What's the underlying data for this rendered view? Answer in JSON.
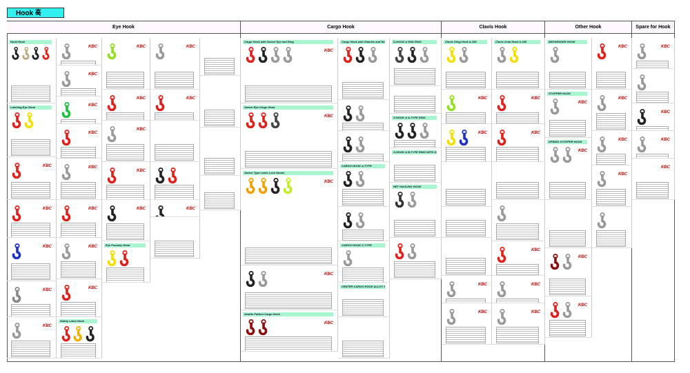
{
  "title": "Hook 훅",
  "sections": [
    {
      "name": "Eye Hook",
      "panels": [
        {
          "title": "Hoist Hook",
          "hooks": [
            "#222",
            "#b9a97c",
            "#222",
            "#e0201a"
          ],
          "kbc": false
        },
        {
          "title": "Latching Eye Hook",
          "hooks": [
            "#e0201a",
            "#f0e000"
          ],
          "kbc": false
        },
        {
          "title": "",
          "hooks": [
            "#e0201a"
          ],
          "kbc": true
        },
        {
          "title": "",
          "hooks": [
            "#e0201a"
          ],
          "kbc": true
        },
        {
          "title": "",
          "hooks": [
            "#2030c0"
          ],
          "kbc": true
        },
        {
          "title": "",
          "hooks": [
            "#888"
          ],
          "kbc": true
        },
        {
          "title": "",
          "hooks": [
            "#999"
          ],
          "kbc": true
        },
        {
          "title": "",
          "hooks": [
            "#999"
          ],
          "kbc": true
        },
        {
          "title": "",
          "hooks": [
            "#999"
          ],
          "kbc": true
        },
        {
          "title": "",
          "hooks": [
            "#20c040"
          ],
          "kbc": true
        },
        {
          "title": "",
          "hooks": [
            "#e0201a"
          ],
          "kbc": true
        },
        {
          "title": "",
          "hooks": [
            "#999"
          ],
          "kbc": true
        },
        {
          "title": "",
          "hooks": [
            "#e0201a"
          ],
          "kbc": true
        },
        {
          "title": "",
          "hooks": [
            "#999"
          ],
          "kbc": true
        },
        {
          "title": "",
          "hooks": [
            "#e0201a"
          ],
          "kbc": true
        },
        {
          "title": "Safety Latch Hook",
          "hooks": [
            "#e0201a",
            "#f0b000",
            "#222"
          ],
          "kbc": false
        },
        {
          "title": "",
          "hooks": [
            "#90e020"
          ],
          "kbc": true
        },
        {
          "title": "",
          "hooks": [
            "#e0201a"
          ],
          "kbc": true
        },
        {
          "title": "",
          "hooks": [
            "#999"
          ],
          "kbc": true
        },
        {
          "title": "",
          "hooks": [
            "#e0201a"
          ],
          "kbc": true
        },
        {
          "title": "",
          "hooks": [
            "#222"
          ],
          "kbc": true
        },
        {
          "title": "Eye Foundry Hook",
          "hooks": [
            "#f0e000",
            "#e0201a"
          ],
          "kbc": false
        },
        {
          "title": "",
          "hooks": [
            "#999"
          ],
          "kbc": true
        },
        {
          "title": "",
          "hooks": [
            "#e0201a"
          ],
          "kbc": true
        },
        {
          "title": "",
          "hooks": [],
          "kbc": false
        },
        {
          "title": "",
          "hooks": [
            "#222",
            "#e0201a"
          ],
          "kbc": false
        },
        {
          "title": "",
          "hooks": [
            "#222"
          ],
          "kbc": true
        },
        {
          "title": "",
          "hooks": [],
          "kbc": false
        },
        {
          "title": "",
          "hooks": [],
          "kbc": false
        },
        {
          "title": "",
          "hooks": [],
          "kbc": false
        },
        {
          "title": "",
          "hooks": [],
          "kbc": false
        },
        {
          "title": "",
          "hooks": [],
          "kbc": false
        }
      ]
    },
    {
      "name": "Cargo Hook",
      "panels": [
        {
          "title": "Cargo Hook with Swivel Eye and Ring",
          "hooks": [
            "#e0201a",
            "#222",
            "#999",
            "#999"
          ],
          "kbc": true
        },
        {
          "title": "Swivel Eye Cargo Hook",
          "hooks": [
            "#e0201a",
            "#e0201a",
            "#444"
          ],
          "kbc": true
        },
        {
          "title": "Swivel Type Latch Lock Hooks",
          "hooks": [
            "#f0a000",
            "#f0a000",
            "#222",
            "#c0f020"
          ],
          "kbc": true
        },
        {
          "title": "",
          "hooks": [
            "#222",
            "#999"
          ],
          "kbc": true
        },
        {
          "title": "Seattle Pattern Cargo Hook",
          "hooks": [
            "#8a1010",
            "#8a1010"
          ],
          "kbc": true
        },
        {
          "title": "Cargo Hook with Shackle and Ring",
          "hooks": [
            "#e0201a",
            "#222",
            "#999"
          ],
          "kbc": false
        },
        {
          "title": "",
          "hooks": [
            "#222",
            "#999"
          ],
          "kbc": false
        },
        {
          "title": "",
          "hooks": [
            "#222",
            "#999"
          ],
          "kbc": false
        },
        {
          "title": "CARGO HOOK A-TYPE",
          "hooks": [
            "#222",
            "#999"
          ],
          "kbc": false
        },
        {
          "title": "",
          "hooks": [
            "#222",
            "#999"
          ],
          "kbc": false
        },
        {
          "title": "CARGO HOOK C-TYPE",
          "hooks": [
            "#999"
          ],
          "kbc": false
        },
        {
          "title": "CENTER CARGO HOOK ALLOY STEEL",
          "hooks": [],
          "kbc": false
        },
        {
          "title": "",
          "hooks": [],
          "kbc": false
        },
        {
          "title": "D-HOOK & END RING",
          "hooks": [
            "#444",
            "#222",
            "#999"
          ],
          "kbc": false
        },
        {
          "title": "",
          "hooks": [],
          "kbc": false
        },
        {
          "title": "S-HOOK & A-TYPE RING",
          "hooks": [
            "#222",
            "#222",
            "#999"
          ],
          "kbc": false
        },
        {
          "title": "S-HOOK & B-TYPE RING WITH GROOVE ALLOY STEEL",
          "hooks": [],
          "kbc": false
        },
        {
          "title": "NET HAULING HOOK",
          "hooks": [
            "#333",
            "#999"
          ],
          "kbc": false
        },
        {
          "title": "",
          "hooks": [
            "#e0201a",
            "#999"
          ],
          "kbc": false
        }
      ]
    },
    {
      "name": "Clavis Hook",
      "panels": [
        {
          "title": "Clavis Sling Hook A-339",
          "hooks": [
            "#f0e000",
            "#999"
          ],
          "kbc": false
        },
        {
          "title": "",
          "hooks": [
            "#90e020"
          ],
          "kbc": true
        },
        {
          "title": "",
          "hooks": [
            "#f0e000",
            "#2030c0"
          ],
          "kbc": true
        },
        {
          "title": "",
          "hooks": [],
          "kbc": false
        },
        {
          "title": "",
          "hooks": [],
          "kbc": false
        },
        {
          "title": "",
          "hooks": [],
          "kbc": false
        },
        {
          "title": "",
          "hooks": [
            "#999"
          ],
          "kbc": true
        },
        {
          "title": "",
          "hooks": [
            "#999"
          ],
          "kbc": true
        },
        {
          "title": "Clavis Grab Hook A-338",
          "hooks": [
            "#999",
            "#f0e000"
          ],
          "kbc": false
        },
        {
          "title": "",
          "hooks": [
            "#e0201a"
          ],
          "kbc": true
        },
        {
          "title": "",
          "hooks": [
            "#e0201a"
          ],
          "kbc": true
        },
        {
          "title": "",
          "hooks": [],
          "kbc": false
        },
        {
          "title": "",
          "hooks": [
            "#999"
          ],
          "kbc": false
        },
        {
          "title": "",
          "hooks": [
            "#e0201a"
          ],
          "kbc": true
        },
        {
          "title": "",
          "hooks": [
            "#999"
          ],
          "kbc": true
        },
        {
          "title": "",
          "hooks": [
            "#999"
          ],
          "kbc": true
        }
      ]
    },
    {
      "name": "Other Hook",
      "panels": [
        {
          "title": "MESSENGER HOOK",
          "hooks": [
            "#999"
          ],
          "kbc": false
        },
        {
          "title": "STOPPER HOOK",
          "hooks": [
            "#999"
          ],
          "kbc": true
        },
        {
          "title": "SPRING STOPPER HOOK",
          "hooks": [
            "#999",
            "#999"
          ],
          "kbc": true
        },
        {
          "title": "",
          "hooks": [],
          "kbc": false
        },
        {
          "title": "",
          "hooks": [
            "#8a1010",
            "#999"
          ],
          "kbc": true
        },
        {
          "title": "",
          "hooks": [
            "#e0201a",
            "#999"
          ],
          "kbc": true
        },
        {
          "title": "",
          "hooks": [
            "#e0201a"
          ],
          "kbc": true
        },
        {
          "title": "",
          "hooks": [
            "#999"
          ],
          "kbc": true
        },
        {
          "title": "",
          "hooks": [
            "#999"
          ],
          "kbc": true
        },
        {
          "title": "",
          "hooks": [
            "#999"
          ],
          "kbc": true
        },
        {
          "title": "",
          "hooks": [
            "#999"
          ],
          "kbc": false
        }
      ]
    },
    {
      "name": "Spare for Hook",
      "panels": [
        {
          "title": "",
          "hooks": [
            "#999"
          ],
          "kbc": true
        },
        {
          "title": "",
          "hooks": [
            "#999"
          ],
          "kbc": false
        },
        {
          "title": "",
          "hooks": [
            "#222"
          ],
          "kbc": true
        },
        {
          "title": "",
          "hooks": [
            "#999"
          ],
          "kbc": true
        },
        {
          "title": "",
          "hooks": [],
          "kbc": true
        }
      ]
    }
  ],
  "brand": "KBC"
}
